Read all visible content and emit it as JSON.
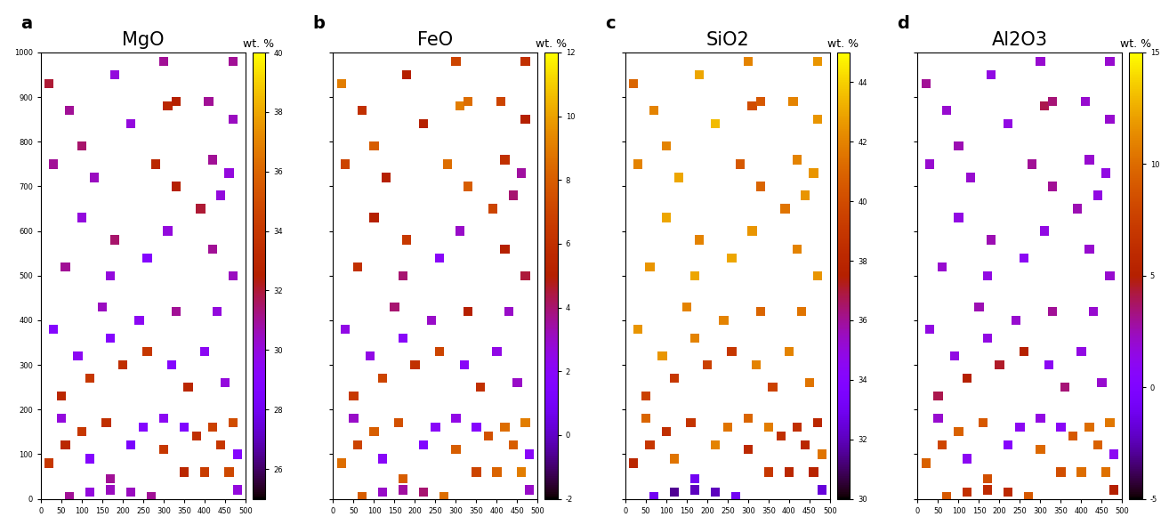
{
  "chart_data": [
    {
      "type": "scatter",
      "title": "MgO",
      "annotations": [
        "a"
      ],
      "xlim": [
        0,
        500
      ],
      "xticks": [
        0,
        50,
        100,
        150,
        200,
        250,
        300,
        350,
        400,
        450,
        500
      ],
      "ylim": [
        0,
        1000
      ],
      "yticks": [
        0,
        100,
        200,
        300,
        400,
        500,
        600,
        700,
        800,
        900,
        1000
      ],
      "x": [
        420,
        440,
        470,
        380,
        300,
        350,
        400,
        460,
        100,
        60,
        160,
        20,
        250,
        220,
        300,
        350,
        120,
        50,
        480,
        170,
        120,
        220,
        70,
        270,
        170,
        480,
        50,
        120,
        200,
        260,
        170,
        90,
        320,
        400,
        450,
        360,
        30,
        240,
        430,
        150,
        330,
        60,
        170,
        180,
        260,
        310,
        420,
        470,
        100,
        390,
        440,
        330,
        280,
        420,
        460,
        130,
        30,
        100,
        220,
        310,
        330,
        410,
        20,
        180,
        300,
        470,
        470,
        70
      ],
      "y": [
        160,
        120,
        170,
        140,
        110,
        60,
        60,
        60,
        150,
        120,
        170,
        80,
        160,
        120,
        180,
        160,
        90,
        180,
        100,
        20,
        15,
        15,
        5,
        5,
        45,
        20,
        230,
        270,
        300,
        330,
        360,
        320,
        300,
        330,
        260,
        250,
        380,
        400,
        420,
        430,
        420,
        520,
        500,
        580,
        540,
        600,
        560,
        500,
        630,
        650,
        680,
        700,
        750,
        760,
        730,
        720,
        750,
        790,
        840,
        880,
        890,
        890,
        930,
        950,
        980,
        980,
        850,
        870
      ],
      "values": [
        34.5,
        34,
        35,
        33.5,
        34,
        33,
        34.2,
        34.8,
        34,
        33,
        33.5,
        34,
        29,
        28.5,
        29.5,
        28.8,
        29,
        30,
        29,
        30.5,
        30,
        30.5,
        31,
        31,
        31,
        30,
        33,
        34,
        33.5,
        34,
        29,
        29.5,
        29,
        29.5,
        30,
        33,
        29,
        29.5,
        30,
        30.5,
        31,
        31,
        30,
        31.5,
        29,
        30,
        31,
        30.5,
        30,
        32,
        30,
        32.5,
        33,
        31,
        30,
        30.5,
        31,
        31.5,
        30,
        33,
        32.5,
        31,
        32,
        30,
        31,
        31,
        30.5,
        31
      ],
      "colorbar": {
        "label": "wt. %",
        "range": [
          25,
          40
        ],
        "ticks": [
          26,
          28,
          30,
          32,
          34,
          36,
          38,
          40
        ]
      }
    },
    {
      "type": "scatter",
      "title": "FeO",
      "annotations": [
        "b"
      ],
      "tick_labels": "x",
      "xlim": [
        0,
        500
      ],
      "xticks": [
        0,
        50,
        100,
        150,
        200,
        250,
        300,
        350,
        400,
        450,
        500
      ],
      "ylim": [
        0,
        1000
      ],
      "yticks": [
        0,
        100,
        200,
        300,
        400,
        500,
        600,
        700,
        800,
        900,
        1000
      ],
      "x": [
        420,
        440,
        470,
        380,
        300,
        350,
        400,
        460,
        100,
        60,
        160,
        20,
        250,
        220,
        300,
        350,
        120,
        50,
        480,
        170,
        120,
        220,
        70,
        270,
        170,
        480,
        50,
        120,
        200,
        260,
        170,
        90,
        320,
        400,
        450,
        360,
        30,
        240,
        430,
        150,
        330,
        60,
        170,
        180,
        260,
        310,
        420,
        470,
        100,
        390,
        440,
        330,
        280,
        420,
        460,
        130,
        30,
        100,
        220,
        310,
        330,
        410,
        20,
        180,
        300,
        470,
        470,
        70
      ],
      "y": [
        160,
        120,
        170,
        140,
        110,
        60,
        60,
        60,
        150,
        120,
        170,
        80,
        160,
        120,
        180,
        160,
        90,
        180,
        100,
        20,
        15,
        15,
        5,
        5,
        45,
        20,
        230,
        270,
        300,
        330,
        360,
        320,
        300,
        330,
        260,
        250,
        380,
        400,
        420,
        430,
        420,
        520,
        500,
        580,
        540,
        600,
        560,
        500,
        630,
        650,
        680,
        700,
        750,
        760,
        730,
        720,
        750,
        790,
        840,
        880,
        890,
        890,
        930,
        950,
        980,
        980,
        850,
        870
      ],
      "values": [
        8.5,
        8,
        9,
        7.5,
        8,
        7,
        8.2,
        9,
        8,
        7,
        7.5,
        8.5,
        2,
        1.5,
        2.5,
        1.8,
        2,
        3,
        2,
        3.5,
        3,
        4,
        8,
        8.5,
        8,
        3,
        6.5,
        7,
        6,
        7,
        2,
        2.5,
        2,
        2.5,
        3,
        6,
        2.5,
        3,
        3,
        4,
        5,
        6,
        4,
        6.5,
        2,
        3,
        5,
        4.5,
        5,
        7,
        4,
        8,
        8.5,
        6,
        3.5,
        5,
        7,
        8,
        5,
        9,
        8.5,
        7,
        9,
        5,
        7,
        6,
        5,
        6
      ],
      "colorbar": {
        "label": "wt. %",
        "range": [
          -2,
          12
        ],
        "ticks": [
          -2,
          0,
          2,
          4,
          6,
          8,
          10,
          12
        ]
      }
    },
    {
      "type": "scatter",
      "title": "SiO2",
      "annotations": [
        "c"
      ],
      "tick_labels": "x",
      "xlim": [
        0,
        500
      ],
      "xticks": [
        0,
        50,
        100,
        150,
        200,
        250,
        300,
        350,
        400,
        450,
        500
      ],
      "ylim": [
        0,
        1000
      ],
      "yticks": [
        0,
        100,
        200,
        300,
        400,
        500,
        600,
        700,
        800,
        900,
        1000
      ],
      "x": [
        420,
        440,
        470,
        380,
        300,
        350,
        400,
        460,
        100,
        60,
        160,
        20,
        250,
        220,
        300,
        350,
        120,
        50,
        480,
        170,
        120,
        220,
        70,
        270,
        170,
        480,
        50,
        120,
        200,
        260,
        170,
        90,
        320,
        400,
        450,
        360,
        30,
        240,
        430,
        150,
        330,
        60,
        170,
        180,
        260,
        310,
        420,
        470,
        100,
        390,
        440,
        330,
        280,
        420,
        460,
        130,
        30,
        100,
        220,
        310,
        330,
        410,
        20,
        180,
        300,
        470,
        470,
        70
      ],
      "y": [
        160,
        120,
        170,
        140,
        110,
        60,
        60,
        60,
        150,
        120,
        170,
        80,
        160,
        120,
        180,
        160,
        90,
        180,
        100,
        20,
        15,
        15,
        5,
        5,
        45,
        20,
        230,
        270,
        300,
        330,
        360,
        320,
        300,
        330,
        260,
        250,
        380,
        400,
        420,
        430,
        420,
        520,
        500,
        580,
        540,
        600,
        560,
        500,
        630,
        650,
        680,
        700,
        750,
        760,
        730,
        720,
        750,
        790,
        840,
        880,
        890,
        890,
        930,
        950,
        980,
        980,
        850,
        870
      ],
      "values": [
        38.5,
        38,
        38,
        38.5,
        38.2,
        39,
        38,
        37.8,
        38.5,
        39,
        38.8,
        38,
        41.5,
        42,
        41,
        41.8,
        41.5,
        41,
        41.5,
        32,
        31.5,
        32,
        33,
        33,
        33,
        32.5,
        39.5,
        39,
        39.5,
        39,
        42,
        42.5,
        42,
        42,
        41.5,
        39.5,
        42.5,
        42,
        41.5,
        42,
        41,
        42.5,
        43,
        42,
        43,
        42.5,
        42,
        42.5,
        43,
        41.5,
        42.5,
        41,
        40.5,
        42,
        42.5,
        43,
        42,
        42,
        43.5,
        40,
        40.5,
        42,
        41,
        43,
        42,
        42.5,
        42.5,
        42
      ],
      "colorbar": {
        "label": "wt. %",
        "range": [
          30,
          45
        ],
        "ticks": [
          30,
          32,
          34,
          36,
          38,
          40,
          42,
          44
        ]
      }
    },
    {
      "type": "scatter",
      "title": "Al2O3",
      "annotations": [
        "d"
      ],
      "tick_labels": "x",
      "xlim": [
        0,
        500
      ],
      "xticks": [
        0,
        50,
        100,
        150,
        200,
        250,
        300,
        350,
        400,
        450,
        500
      ],
      "ylim": [
        0,
        1000
      ],
      "yticks": [
        0,
        100,
        200,
        300,
        400,
        500,
        600,
        700,
        800,
        900,
        1000
      ],
      "x": [
        420,
        440,
        470,
        380,
        300,
        350,
        400,
        460,
        100,
        60,
        160,
        20,
        250,
        220,
        300,
        350,
        120,
        50,
        480,
        170,
        120,
        220,
        70,
        270,
        170,
        480,
        50,
        120,
        200,
        260,
        170,
        90,
        320,
        400,
        450,
        360,
        30,
        240,
        430,
        150,
        330,
        60,
        170,
        180,
        260,
        310,
        420,
        470,
        100,
        390,
        440,
        330,
        280,
        420,
        460,
        130,
        30,
        100,
        220,
        310,
        330,
        410,
        20,
        180,
        300,
        470,
        470,
        70
      ],
      "y": [
        160,
        120,
        170,
        140,
        110,
        60,
        60,
        60,
        150,
        120,
        170,
        80,
        160,
        120,
        180,
        160,
        90,
        180,
        100,
        20,
        15,
        15,
        5,
        5,
        45,
        20,
        230,
        270,
        300,
        330,
        360,
        320,
        300,
        330,
        260,
        250,
        380,
        400,
        420,
        430,
        420,
        520,
        500,
        580,
        540,
        600,
        560,
        500,
        630,
        650,
        680,
        700,
        750,
        760,
        730,
        720,
        750,
        790,
        840,
        880,
        890,
        890,
        930,
        950,
        980,
        980,
        850,
        870
      ],
      "values": [
        10,
        9.5,
        10.5,
        9,
        9.8,
        8.5,
        10,
        10.2,
        9.5,
        8,
        9,
        9.5,
        1,
        0.5,
        1.5,
        0.8,
        1,
        2,
        1,
        6,
        6.5,
        6,
        9,
        9,
        8.5,
        5,
        4,
        5,
        4.5,
        5,
        1.5,
        1.5,
        1,
        1.5,
        2,
        3.5,
        1.5,
        2,
        2,
        2.5,
        3,
        2,
        1.5,
        2.5,
        1,
        1.5,
        2,
        2,
        1.5,
        2.5,
        1.5,
        3,
        3,
        2,
        1.5,
        2,
        2,
        2.5,
        1.5,
        4,
        3.5,
        2,
        3,
        1.5,
        2,
        2,
        2,
        2
      ],
      "colorbar": {
        "label": "wt. %",
        "range": [
          -5,
          15
        ],
        "ticks": [
          -5,
          0,
          5,
          10,
          15
        ]
      }
    }
  ]
}
